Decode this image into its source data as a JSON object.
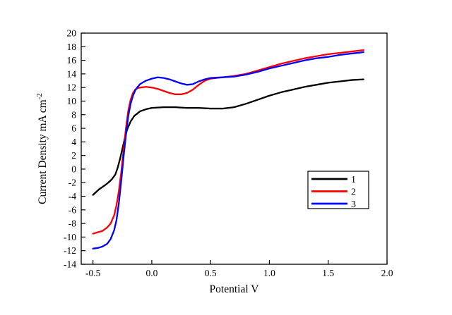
{
  "figure": {
    "background": "#ffffff",
    "frame_color": "#000000"
  },
  "chart_data": {
    "type": "line",
    "title": "",
    "xlabel": "Potential V",
    "ylabel": "Current Density mA cm",
    "ylabel_exponent": "-2",
    "xlim": [
      -0.6,
      2.0
    ],
    "ylim": [
      -14,
      20
    ],
    "x_ticks": [
      -0.5,
      0.0,
      0.5,
      1.0,
      1.5,
      2.0
    ],
    "x_tick_labels": [
      "-0.5",
      "0.0",
      "0.5",
      "1.0",
      "1.5",
      "2.0"
    ],
    "y_ticks": [
      -14,
      -12,
      -10,
      -8,
      -6,
      -4,
      -2,
      0,
      2,
      4,
      6,
      8,
      10,
      12,
      14,
      16,
      18,
      20
    ],
    "grid": false,
    "legend_position": "inside-right-center",
    "legend_entries": [
      "1",
      "2",
      "3"
    ],
    "series": [
      {
        "name": "1",
        "color": "#000000",
        "x": [
          -0.5,
          -0.45,
          -0.4,
          -0.37,
          -0.34,
          -0.31,
          -0.29,
          -0.27,
          -0.25,
          -0.23,
          -0.21,
          -0.18,
          -0.15,
          -0.1,
          -0.05,
          0.0,
          0.1,
          0.2,
          0.3,
          0.4,
          0.5,
          0.6,
          0.7,
          0.8,
          0.9,
          1.0,
          1.1,
          1.2,
          1.3,
          1.4,
          1.5,
          1.6,
          1.7,
          1.8
        ],
        "y": [
          -3.8,
          -3.0,
          -2.4,
          -2.0,
          -1.5,
          -0.8,
          0.2,
          1.5,
          3.0,
          4.5,
          5.8,
          7.0,
          7.8,
          8.5,
          8.8,
          9.0,
          9.1,
          9.1,
          9.0,
          9.0,
          8.9,
          8.9,
          9.1,
          9.6,
          10.2,
          10.8,
          11.3,
          11.7,
          12.1,
          12.4,
          12.7,
          12.9,
          13.1,
          13.2
        ]
      },
      {
        "name": "2",
        "color": "#ff0000",
        "x": [
          -0.5,
          -0.46,
          -0.42,
          -0.38,
          -0.35,
          -0.32,
          -0.3,
          -0.28,
          -0.26,
          -0.24,
          -0.22,
          -0.2,
          -0.18,
          -0.16,
          -0.14,
          -0.12,
          -0.1,
          -0.05,
          0.0,
          0.05,
          0.1,
          0.15,
          0.2,
          0.25,
          0.3,
          0.35,
          0.4,
          0.45,
          0.5,
          0.55,
          0.6,
          0.7,
          0.8,
          0.9,
          1.0,
          1.1,
          1.2,
          1.3,
          1.4,
          1.5,
          1.6,
          1.7,
          1.8
        ],
        "y": [
          -9.5,
          -9.3,
          -9.1,
          -8.6,
          -8.0,
          -6.8,
          -5.3,
          -3.2,
          -0.5,
          2.8,
          6.0,
          8.6,
          10.2,
          11.2,
          11.7,
          11.9,
          12.0,
          12.1,
          12.0,
          11.8,
          11.5,
          11.2,
          11.0,
          11.0,
          11.2,
          11.7,
          12.4,
          13.0,
          13.3,
          13.4,
          13.5,
          13.7,
          14.0,
          14.5,
          15.0,
          15.5,
          15.9,
          16.3,
          16.6,
          16.9,
          17.1,
          17.3,
          17.5
        ]
      },
      {
        "name": "3",
        "color": "#0000ff",
        "x": [
          -0.5,
          -0.46,
          -0.42,
          -0.38,
          -0.35,
          -0.32,
          -0.3,
          -0.28,
          -0.26,
          -0.24,
          -0.22,
          -0.2,
          -0.18,
          -0.16,
          -0.14,
          -0.12,
          -0.1,
          -0.05,
          0.0,
          0.05,
          0.1,
          0.15,
          0.2,
          0.25,
          0.3,
          0.35,
          0.4,
          0.45,
          0.5,
          0.6,
          0.7,
          0.8,
          0.9,
          1.0,
          1.1,
          1.2,
          1.3,
          1.4,
          1.5,
          1.6,
          1.7,
          1.8
        ],
        "y": [
          -11.7,
          -11.6,
          -11.4,
          -11.0,
          -10.3,
          -9.0,
          -7.5,
          -5.0,
          -1.8,
          1.8,
          5.0,
          7.8,
          9.6,
          10.8,
          11.6,
          12.1,
          12.5,
          13.0,
          13.3,
          13.5,
          13.4,
          13.2,
          12.9,
          12.6,
          12.4,
          12.5,
          12.9,
          13.2,
          13.4,
          13.5,
          13.6,
          13.9,
          14.3,
          14.8,
          15.2,
          15.6,
          16.0,
          16.3,
          16.5,
          16.8,
          17.0,
          17.2
        ]
      }
    ]
  }
}
